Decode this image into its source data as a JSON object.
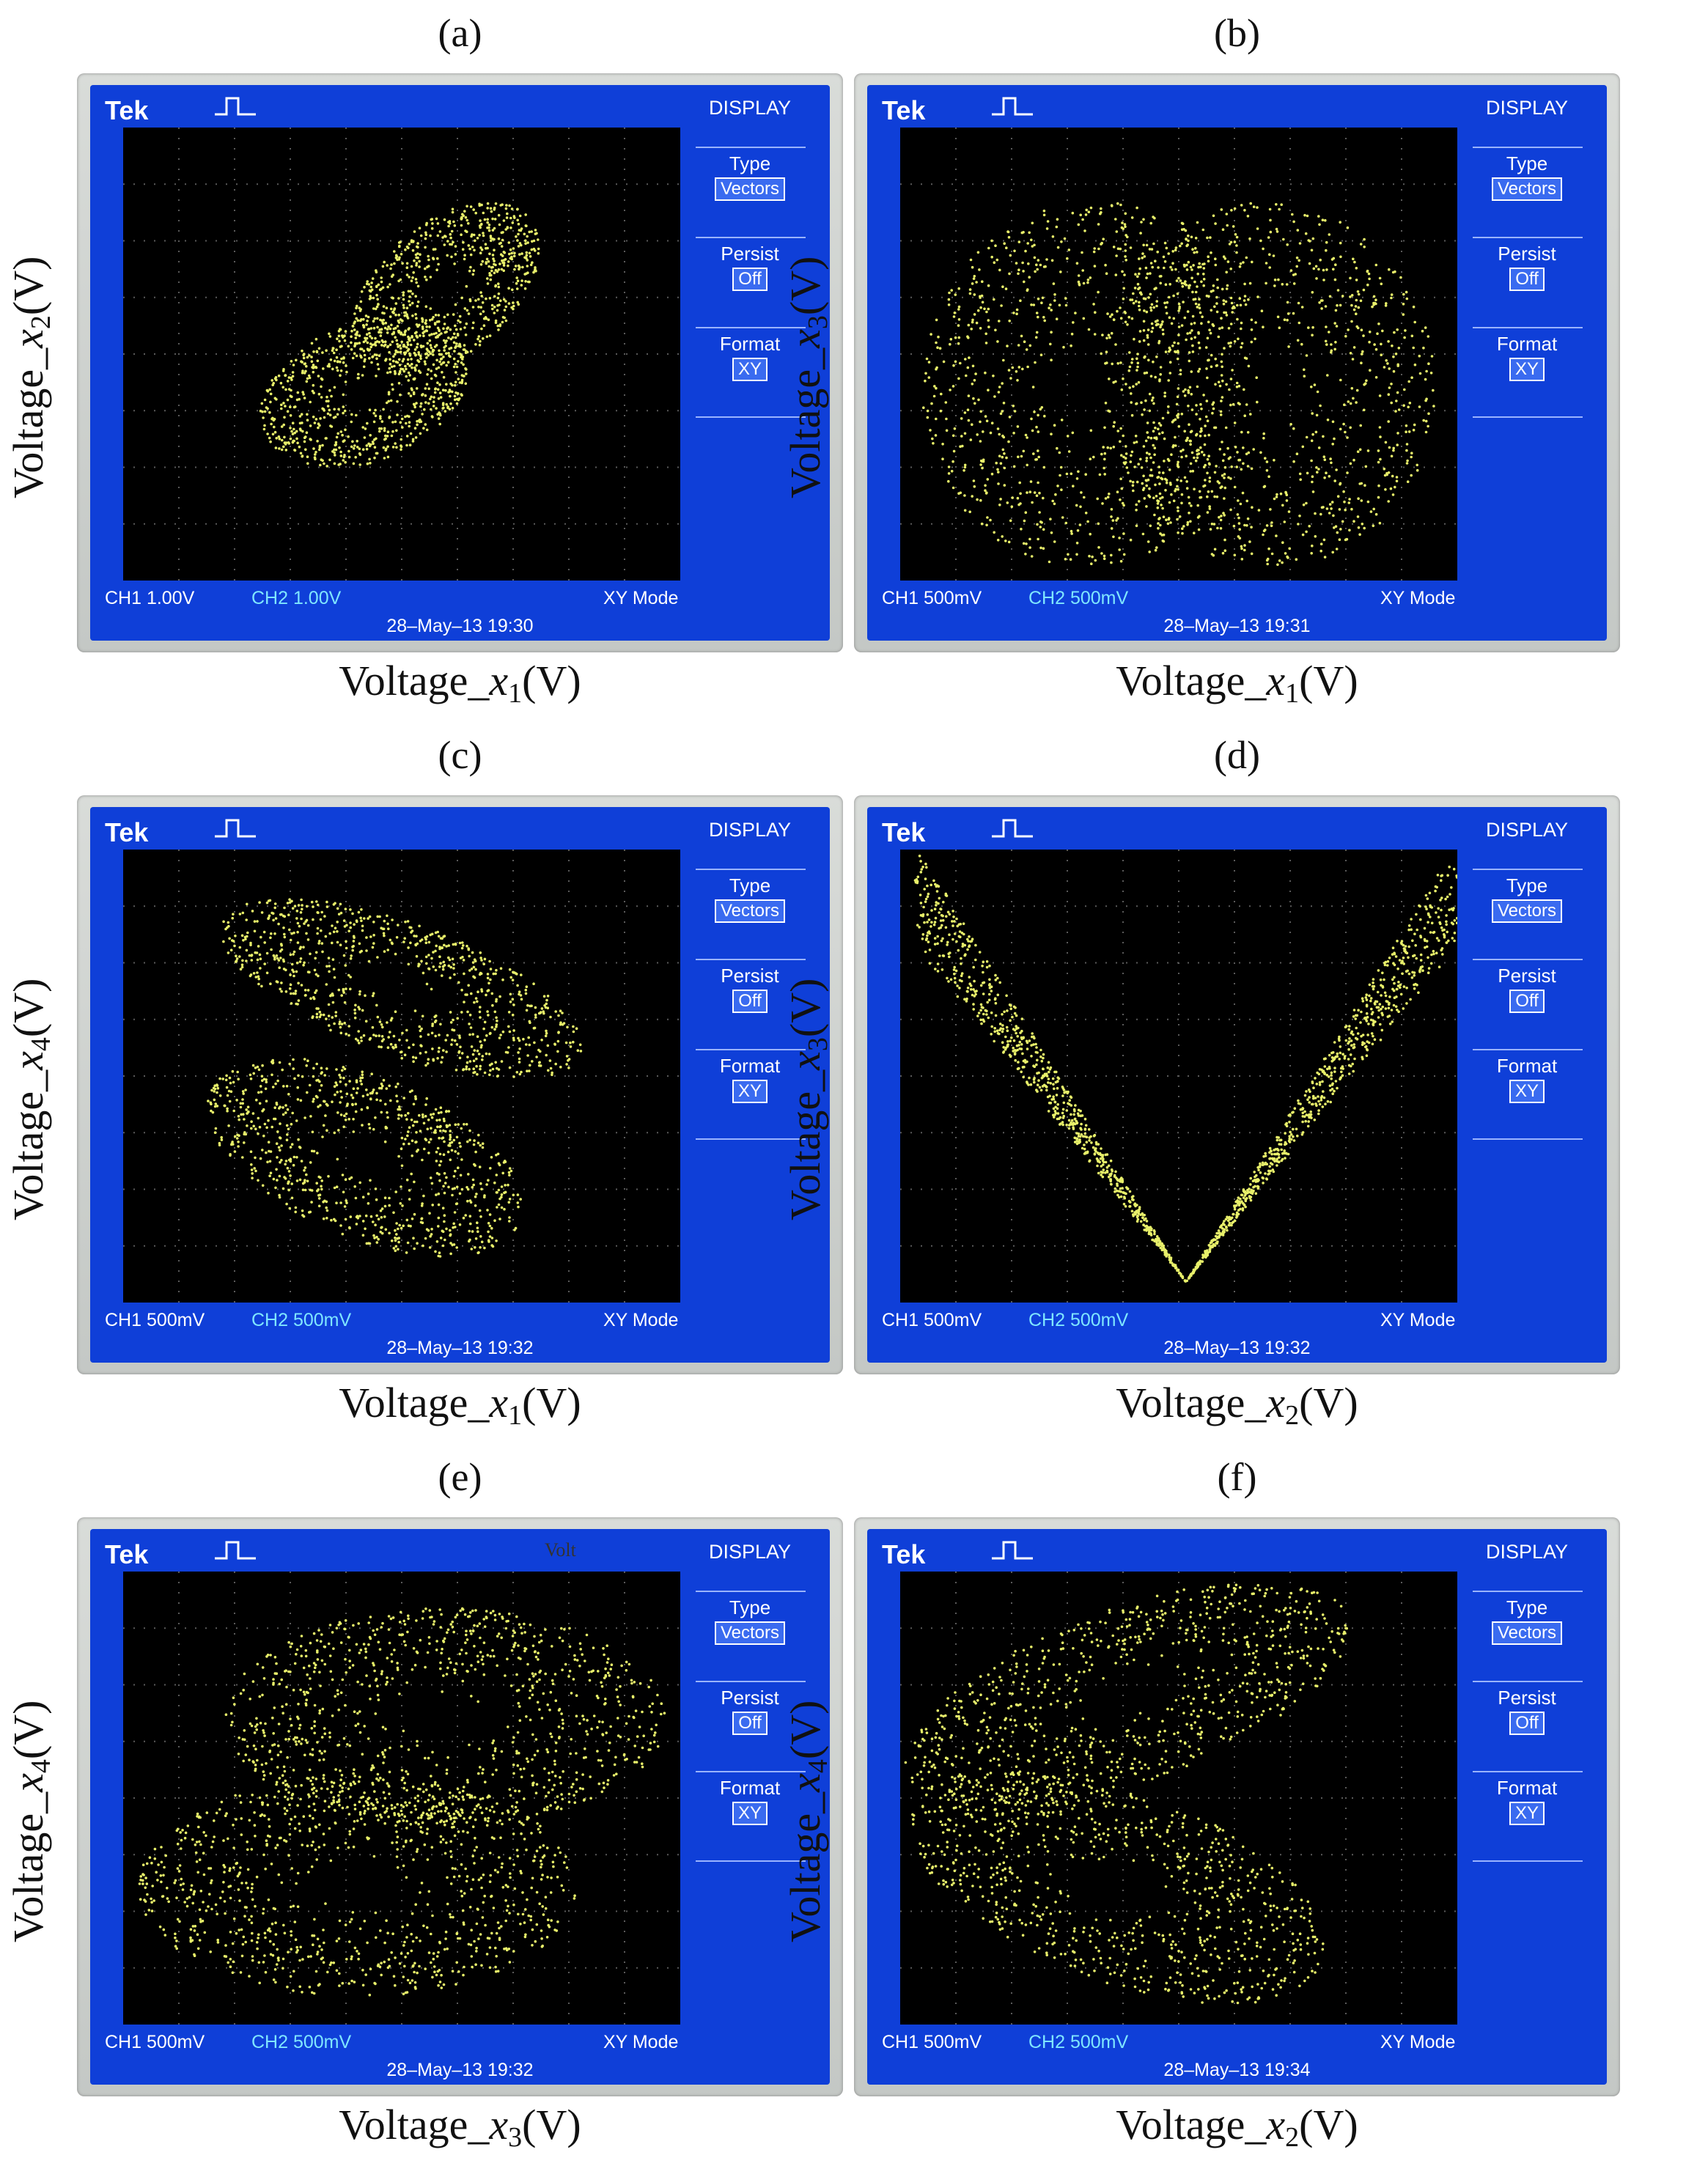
{
  "panels": [
    {
      "label": "(a)",
      "ylabel": {
        "pre": "Voltage_",
        "var": "x",
        "sub": "2",
        "post": "(V)"
      },
      "xlabel": {
        "pre": "Voltage_",
        "var": "x",
        "sub": "1",
        "post": "(V)"
      },
      "ch1": "CH1  1.00V",
      "ch2": "CH2  1.00V",
      "timestamp": "28–May–13 19:30",
      "shape": "lorenz-diag"
    },
    {
      "label": "(b)",
      "ylabel": {
        "pre": "Voltage_",
        "var": "x",
        "sub": "3",
        "post": "(V)"
      },
      "xlabel": {
        "pre": "Voltage_",
        "var": "x",
        "sub": "1",
        "post": "(V)"
      },
      "ch1": "CH1  500mV",
      "ch2": "CH2  500mV",
      "timestamp": "28–May–13 19:31",
      "shape": "butterfly"
    },
    {
      "label": "(c)",
      "ylabel": {
        "pre": "Voltage_",
        "var": "x",
        "sub": "4",
        "post": "(V)"
      },
      "xlabel": {
        "pre": "Voltage_",
        "var": "x",
        "sub": "1",
        "post": "(V)"
      },
      "ch1": "CH1  500mV",
      "ch2": "CH2  500mV",
      "timestamp": "28–May–13 19:32",
      "shape": "twisted"
    },
    {
      "label": "(d)",
      "ylabel": {
        "pre": "Voltage_",
        "var": "x",
        "sub": "3",
        "post": "(V)"
      },
      "xlabel": {
        "pre": "Voltage_",
        "var": "x",
        "sub": "2",
        "post": "(V)"
      },
      "ch1": "CH1  500mV",
      "ch2": "CH2  500mV",
      "timestamp": "28–May–13 19:32",
      "shape": "vee"
    },
    {
      "label": "(e)",
      "ylabel": {
        "pre": "Voltage_",
        "var": "x",
        "sub": "4",
        "post": "(V)"
      },
      "xlabel": {
        "pre": "Voltage_",
        "var": "x",
        "sub": "3",
        "post": "(V)"
      },
      "ch1": "CH1  500mV",
      "ch2": "CH2  500mV",
      "timestamp": "28–May–13 19:32",
      "shape": "hourglass",
      "annotation": "Volt"
    },
    {
      "label": "(f)",
      "ylabel": {
        "pre": "Voltage_",
        "var": "x",
        "sub": "4",
        "post": "(V)"
      },
      "xlabel": {
        "pre": "Voltage_",
        "var": "x",
        "sub": "2",
        "post": "(V)"
      },
      "ch1": "CH1  500mV",
      "ch2": "CH2  500mV",
      "timestamp": "28–May–13 19:34",
      "shape": "bowtie"
    }
  ],
  "scope": {
    "brand": "Tek",
    "menu_title": "DISPLAY",
    "type_label": "Type",
    "type_value": "Vectors",
    "persist_label": "Persist",
    "persist_value": "Off",
    "format_label": "Format",
    "format_value": "XY",
    "mode": "XY Mode"
  },
  "colors": {
    "trace": "#e8f06a",
    "screen": "#0f3fd8",
    "plot_bg": "#000000",
    "grid": "#5a5a5a"
  }
}
